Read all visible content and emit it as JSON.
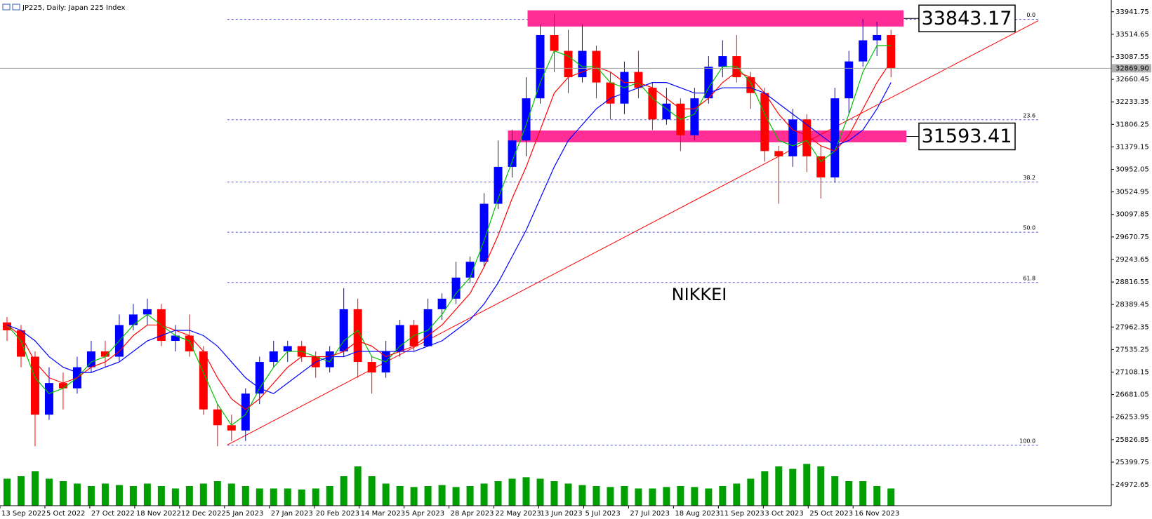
{
  "chart_data": {
    "type": "candlestick",
    "title": "JP225, Daily:  Japan 225 Index",
    "annotation": "NIKKEI",
    "x": [
      2.5,
      7.5,
      12.5,
      17.5,
      22.5,
      27.5,
      32.5,
      37.5,
      42.5,
      47.5,
      52.5,
      57.5,
      62.5,
      67.5,
      72.5,
      77.5,
      82.5,
      87.5,
      92.5,
      97.5,
      102.5,
      107.5,
      112.5,
      117.5,
      122.5,
      127.5,
      132.5,
      137.5,
      142.5,
      147.5,
      152.5,
      157.5,
      162.5,
      167.5,
      172.5,
      177.5,
      182.5,
      187.5,
      192.5,
      197.5,
      202.5,
      207.5,
      212.5,
      217.5,
      222.5,
      227.5,
      232.5,
      237.5,
      242.5,
      247.5,
      252.5,
      257.5,
      262.5,
      267.5,
      272.5,
      277.5,
      282.5,
      287.5,
      292.5,
      297.5,
      302.5,
      307.5,
      312.5,
      317.5
    ],
    "open": [
      28050,
      27900,
      27400,
      26300,
      26900,
      26800,
      27200,
      27500,
      27400,
      28000,
      28200,
      28300,
      27700,
      27800,
      27500,
      26400,
      26100,
      26000,
      26700,
      27300,
      27500,
      27600,
      27400,
      27200,
      27500,
      28300,
      27300,
      27100,
      27500,
      28000,
      27600,
      28300,
      28500,
      28900,
      29200,
      30300,
      31000,
      31500,
      32300,
      33500,
      33200,
      32700,
      33200,
      32600,
      32200,
      32800,
      32500,
      31900,
      32200,
      31600,
      32300,
      32900,
      33100,
      32700,
      32400,
      31300,
      31200,
      31900,
      31200,
      30800,
      32300,
      33000,
      33400,
      33500
    ],
    "high": [
      28150,
      28000,
      27500,
      27200,
      27100,
      27400,
      27700,
      27700,
      28200,
      28400,
      28500,
      28400,
      28000,
      28200,
      27600,
      26500,
      26300,
      26800,
      27400,
      27700,
      27700,
      27700,
      27500,
      27600,
      28700,
      28500,
      27400,
      27700,
      28100,
      28100,
      28500,
      28600,
      29200,
      29300,
      30500,
      31500,
      31700,
      32700,
      33700,
      33900,
      33600,
      33700,
      33300,
      32800,
      33000,
      33200,
      32600,
      32500,
      32300,
      32500,
      33100,
      33400,
      33500,
      32800,
      32500,
      31400,
      32100,
      32000,
      31400,
      32500,
      33200,
      33800,
      33750,
      33600
    ],
    "low": [
      27700,
      27200,
      25700,
      26200,
      26400,
      26700,
      27100,
      27200,
      27300,
      27900,
      28000,
      27600,
      27500,
      27400,
      26300,
      25700,
      25800,
      25800,
      26500,
      27200,
      27300,
      27300,
      27000,
      27100,
      27400,
      27000,
      26700,
      27000,
      27400,
      27500,
      27600,
      28100,
      28400,
      28800,
      29100,
      30200,
      30800,
      31200,
      32200,
      32800,
      32400,
      32600,
      32300,
      31900,
      32000,
      32300,
      31700,
      31800,
      31300,
      31500,
      32200,
      32700,
      32600,
      32100,
      31100,
      30300,
      31000,
      30900,
      30400,
      30700,
      32000,
      32900,
      33100,
      32700
    ],
    "close": [
      27900,
      27400,
      26300,
      26900,
      26800,
      27200,
      27500,
      27400,
      28000,
      28200,
      28300,
      27700,
      27800,
      27500,
      26400,
      26100,
      26000,
      26700,
      27300,
      27500,
      27600,
      27400,
      27200,
      27500,
      28300,
      27300,
      27100,
      27500,
      28000,
      27600,
      28300,
      28500,
      28900,
      29200,
      30300,
      31000,
      31500,
      32300,
      33500,
      33200,
      32700,
      33200,
      32600,
      32200,
      32800,
      32500,
      31900,
      32200,
      31600,
      32300,
      32900,
      33100,
      32700,
      32400,
      31300,
      31200,
      31900,
      31200,
      30800,
      32300,
      33000,
      33400,
      33500,
      32870
    ],
    "up_color": "#0000ff",
    "down_color": "#ff0000",
    "ma": [
      {
        "color": "#00c000",
        "values": [
          28000,
          27700,
          27000,
          26700,
          26800,
          27000,
          27300,
          27400,
          27700,
          28000,
          28200,
          28000,
          27800,
          27700,
          27100,
          26500,
          26100,
          26300,
          26800,
          27200,
          27500,
          27500,
          27400,
          27300,
          27700,
          27900,
          27400,
          27300,
          27600,
          27800,
          27900,
          28200,
          28600,
          28900,
          29600,
          30400,
          31100,
          31800,
          32600,
          33200,
          33100,
          32900,
          32900,
          32600,
          32500,
          32600,
          32300,
          32100,
          31900,
          32000,
          32500,
          32900,
          32900,
          32600,
          32000,
          31500,
          31400,
          31500,
          31100,
          31300,
          32000,
          32800,
          33300,
          33300
        ]
      },
      {
        "color": "#ff0000",
        "values": [
          28000,
          27800,
          27300,
          27000,
          26900,
          27000,
          27200,
          27300,
          27500,
          27800,
          28000,
          28000,
          27900,
          27800,
          27500,
          27000,
          26600,
          26400,
          26600,
          26900,
          27200,
          27400,
          27400,
          27400,
          27500,
          27700,
          27600,
          27400,
          27500,
          27600,
          27800,
          28000,
          28300,
          28600,
          29100,
          29700,
          30400,
          31000,
          31700,
          32400,
          32700,
          32800,
          32900,
          32800,
          32600,
          32600,
          32500,
          32300,
          32100,
          32100,
          32300,
          32600,
          32800,
          32700,
          32400,
          32000,
          31700,
          31600,
          31400,
          31300,
          31600,
          32100,
          32600,
          33000
        ]
      },
      {
        "color": "#0000ff",
        "values": [
          28000,
          27900,
          27700,
          27400,
          27200,
          27100,
          27100,
          27200,
          27300,
          27500,
          27700,
          27800,
          27900,
          27900,
          27800,
          27600,
          27300,
          27000,
          26800,
          26700,
          26900,
          27100,
          27300,
          27400,
          27400,
          27500,
          27500,
          27500,
          27500,
          27500,
          27600,
          27700,
          27900,
          28100,
          28400,
          28800,
          29300,
          29800,
          30400,
          31000,
          31500,
          31800,
          32100,
          32300,
          32400,
          32500,
          32600,
          32600,
          32500,
          32400,
          32400,
          32500,
          32500,
          32500,
          32400,
          32200,
          32000,
          31800,
          31600,
          31400,
          31500,
          31700,
          32100,
          32600
        ]
      }
    ],
    "volume": {
      "color": "#00a000",
      "vlim": [
        0,
        100
      ],
      "values": [
        55,
        60,
        70,
        55,
        50,
        45,
        40,
        45,
        42,
        40,
        45,
        40,
        35,
        40,
        45,
        50,
        45,
        40,
        35,
        35,
        35,
        33,
        35,
        40,
        60,
        80,
        60,
        45,
        40,
        38,
        40,
        42,
        38,
        40,
        45,
        50,
        55,
        58,
        55,
        50,
        45,
        42,
        40,
        38,
        40,
        35,
        35,
        38,
        40,
        38,
        35,
        40,
        45,
        55,
        70,
        80,
        75,
        85,
        80,
        60,
        50,
        50,
        40,
        35
      ]
    },
    "xlim": [
      0,
      396
    ],
    "ylim": [
      24574,
      34165
    ],
    "yticks": [
      33941.75,
      33514.65,
      33087.55,
      32660.45,
      32233.35,
      31806.25,
      31379.15,
      30952.05,
      30524.95,
      30097.85,
      29670.75,
      29243.65,
      28816.55,
      28389.45,
      27962.35,
      27535.25,
      27108.15,
      26681.05,
      26253.95,
      25826.85,
      25399.75,
      24972.65
    ],
    "xticks": [
      {
        "value": 0,
        "label": "13 Sep 2022"
      },
      {
        "value": 16,
        "label": "5 Oct 2022"
      },
      {
        "value": 32,
        "label": "27 Oct 2022"
      },
      {
        "value": 48,
        "label": "18 Nov 2022"
      },
      {
        "value": 64,
        "label": "12 Dec 2022"
      },
      {
        "value": 80,
        "label": "5 Jan 2023"
      },
      {
        "value": 96,
        "label": "27 Jan 2023"
      },
      {
        "value": 112,
        "label": "20 Feb 2023"
      },
      {
        "value": 128,
        "label": "14 Mar 2023"
      },
      {
        "value": 144,
        "label": "5 Apr 2023"
      },
      {
        "value": 160,
        "label": "28 Apr 2023"
      },
      {
        "value": 176,
        "label": "22 May 2023"
      },
      {
        "value": 192,
        "label": "13 Jun 2023"
      },
      {
        "value": 208,
        "label": "5 Jul 2023"
      },
      {
        "value": 224,
        "label": "27 Jul 2023"
      },
      {
        "value": 240,
        "label": "18 Aug 2023"
      },
      {
        "value": 256,
        "label": "11 Sep 2023"
      },
      {
        "value": 272,
        "label": "3 Oct 2023"
      },
      {
        "value": 288,
        "label": "25 Oct 2023"
      },
      {
        "value": 304,
        "label": "16 Nov 2023"
      }
    ],
    "current_price": {
      "value": 32869.9,
      "label": "32869.90"
    },
    "fib": {
      "color": "#5a5ad0",
      "x": [
        81,
        370
      ],
      "levels": [
        {
          "label": "0.0",
          "price": 33800
        },
        {
          "label": "23.6",
          "price": 31893
        },
        {
          "label": "38.2",
          "price": 30713
        },
        {
          "label": "50.0",
          "price": 29760
        },
        {
          "label": "61.8",
          "price": 28807
        },
        {
          "label": "100.0",
          "price": 25720
        }
      ]
    },
    "trendline": {
      "color": "#ff0000",
      "x": [
        81,
        370
      ],
      "y": [
        25726,
        33774
      ]
    },
    "zones": [
      {
        "color": "#ff2d95",
        "x": [
          188,
          322
        ],
        "y": [
          33662,
          33969
        ],
        "label": 33843.17
      },
      {
        "color": "#ff2d95",
        "x": [
          181,
          323
        ],
        "y": [
          31466,
          31689
        ],
        "label": 31593.41
      }
    ]
  }
}
